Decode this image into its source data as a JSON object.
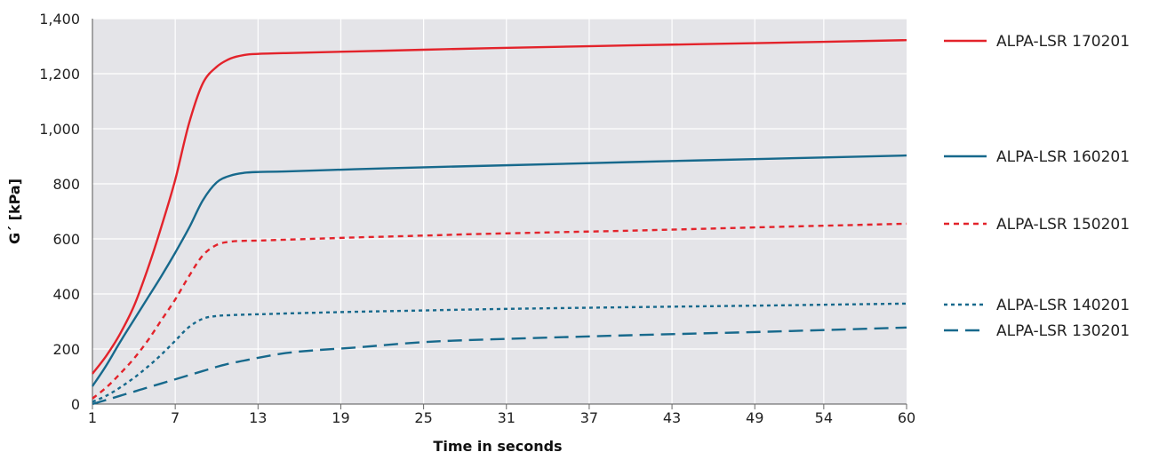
{
  "chart_data": {
    "type": "line",
    "title": "",
    "xlabel": "Time in seconds",
    "ylabel": "G´ [kPa]",
    "xlim": [
      1,
      60
    ],
    "ylim": [
      0,
      1400
    ],
    "grid": true,
    "legend_placement": "right",
    "x_ticks": [
      1,
      7,
      13,
      19,
      25,
      31,
      37,
      43,
      49,
      54,
      60
    ],
    "y_ticks": [
      0,
      200,
      400,
      600,
      800,
      1000,
      1200,
      1400
    ],
    "y_tick_labels": [
      "0",
      "200",
      "400",
      "600",
      "800",
      "1,000",
      "1,200",
      "1,400"
    ],
    "colors": {
      "plot_background": "#e4e4e8",
      "grid": "#ffffff",
      "red": "#e3232b",
      "blue": "#17698c"
    },
    "series": [
      {
        "name": "ALPA-LSR 170201",
        "color": "#e3232b",
        "style": "solid",
        "x": [
          1,
          2,
          3,
          4,
          5,
          6,
          7,
          8,
          9,
          10,
          11,
          12,
          13,
          15,
          20,
          25,
          30,
          40,
          50,
          60
        ],
        "y": [
          110,
          175,
          255,
          355,
          490,
          645,
          815,
          1020,
          1165,
          1225,
          1255,
          1268,
          1272,
          1275,
          1281,
          1287,
          1293,
          1303,
          1312,
          1322
        ]
      },
      {
        "name": "ALPA-LSR 160201",
        "color": "#17698c",
        "style": "solid",
        "x": [
          1,
          2,
          3,
          4,
          5,
          6,
          7,
          8,
          9,
          10,
          11,
          12,
          13,
          15,
          20,
          25,
          30,
          40,
          50,
          60
        ],
        "y": [
          65,
          140,
          225,
          305,
          385,
          465,
          550,
          640,
          740,
          805,
          830,
          840,
          843,
          845,
          853,
          860,
          866,
          879,
          891,
          903
        ]
      },
      {
        "name": "ALPA-LSR 150201",
        "color": "#e3232b",
        "style": "dash",
        "x": [
          1,
          2,
          3,
          4,
          5,
          6,
          7,
          8,
          9,
          10,
          11,
          12,
          13,
          15,
          20,
          25,
          30,
          40,
          50,
          60
        ],
        "y": [
          20,
          60,
          110,
          165,
          230,
          305,
          380,
          465,
          540,
          578,
          590,
          593,
          594,
          597,
          605,
          612,
          619,
          630,
          643,
          655
        ]
      },
      {
        "name": "ALPA-LSR 140201",
        "color": "#17698c",
        "style": "dot",
        "x": [
          1,
          2,
          3,
          4,
          5,
          6,
          7,
          8,
          9,
          10,
          11,
          12,
          13,
          15,
          20,
          25,
          30,
          40,
          50,
          60
        ],
        "y": [
          8,
          30,
          60,
          95,
          135,
          180,
          230,
          280,
          310,
          320,
          323,
          325,
          326,
          329,
          335,
          340,
          345,
          352,
          358,
          365
        ]
      },
      {
        "name": "ALPA-LSR 130201",
        "color": "#17698c",
        "style": "longdash",
        "x": [
          1,
          2,
          3,
          4,
          5,
          6,
          7,
          8,
          9,
          10,
          11,
          12,
          13,
          15,
          17,
          20,
          25,
          30,
          40,
          50,
          60
        ],
        "y": [
          0,
          15,
          30,
          45,
          60,
          75,
          90,
          105,
          120,
          135,
          148,
          158,
          168,
          185,
          195,
          205,
          225,
          235,
          250,
          263,
          278
        ]
      }
    ]
  }
}
